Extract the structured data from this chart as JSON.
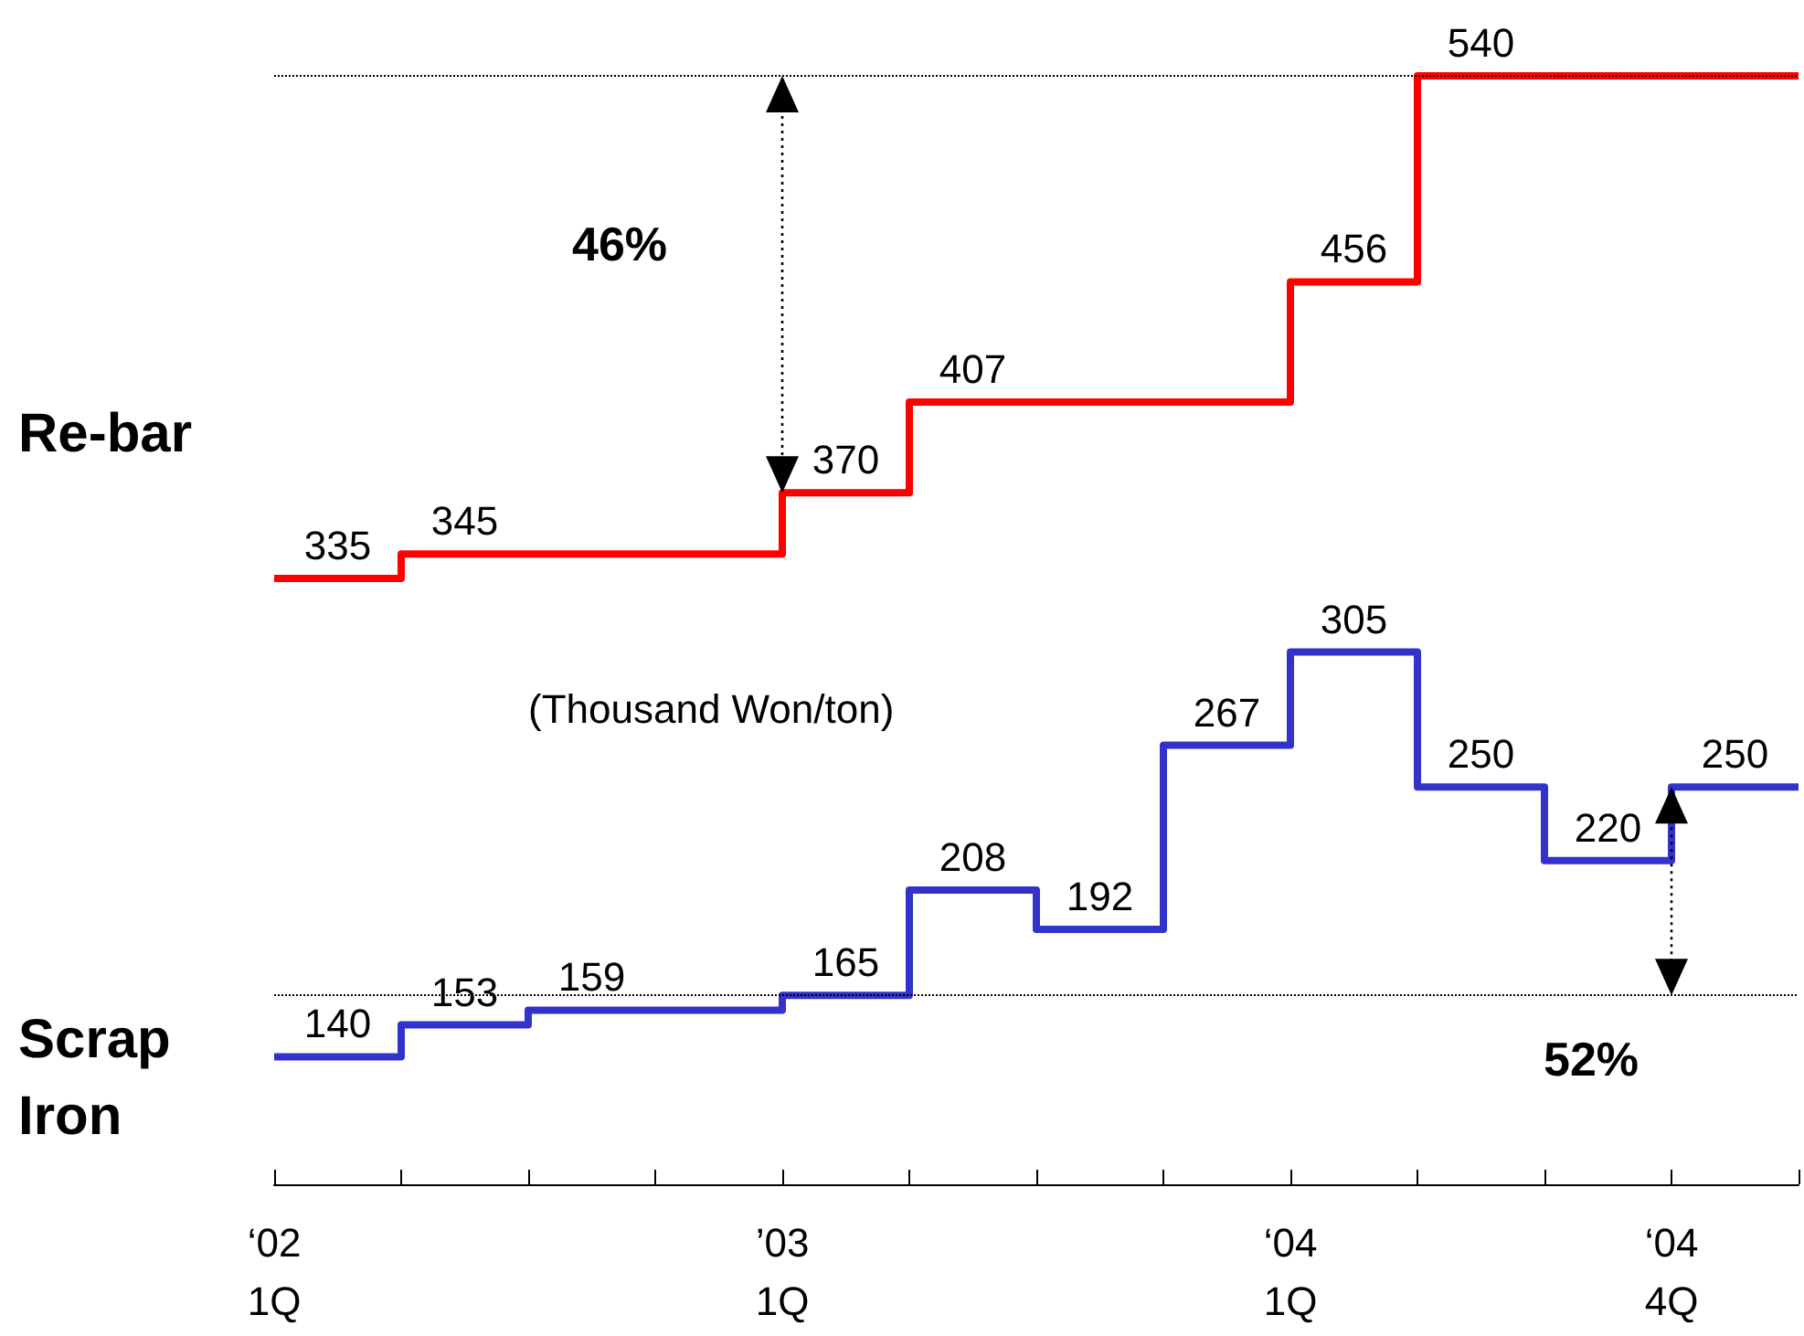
{
  "chart_data": {
    "type": "step",
    "categories": [
      "‘02\n1Q",
      null,
      null,
      null,
      "’03\n1Q",
      null,
      null,
      null,
      "‘04\n1Q",
      null,
      null,
      "‘04\n4Q",
      null
    ],
    "series": [
      {
        "name": "Re-bar",
        "color": "#ff0000",
        "values": [
          335,
          345,
          345,
          345,
          370,
          407,
          407,
          407,
          456,
          540,
          540,
          540,
          540
        ],
        "value_labels": [
          "335",
          "345",
          null,
          null,
          "370",
          "407",
          null,
          null,
          "456",
          "540",
          null,
          null,
          null
        ]
      },
      {
        "name": "Scrap Iron",
        "color": "#3333cc",
        "values": [
          140,
          153,
          159,
          159,
          165,
          208,
          192,
          267,
          305,
          250,
          220,
          250,
          250
        ],
        "value_labels": [
          "140",
          "153",
          "159",
          null,
          "165",
          "208",
          "192",
          "267",
          "305",
          "250",
          "220",
          "250",
          null
        ]
      }
    ],
    "tick_labels": "x",
    "marker": "none",
    "ref_lines": [
      {
        "axis": "y",
        "value": 540,
        "line_style": "dotted",
        "color": "#000000"
      },
      {
        "axis": "y",
        "value": 165,
        "line_style": "dotted",
        "color": "#000000"
      }
    ],
    "annotations": [
      "46%",
      "52%",
      "(Thousand Won/ton)"
    ]
  }
}
